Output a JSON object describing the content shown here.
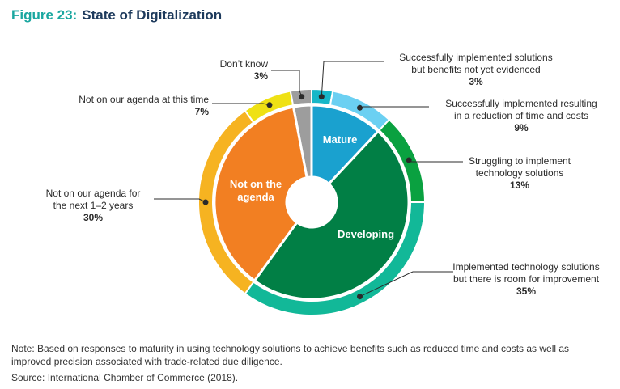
{
  "figure": {
    "number": "Figure 23:",
    "title": "State of Digitalization",
    "note": "Note: Based on responses to maturity in using technology solutions to achieve benefits such as reduced time and costs as well as improved precision associated with trade-related due diligence.",
    "source": "Source: International Chamber of Commerce (2018)."
  },
  "chart_data": {
    "type": "pie",
    "title": "State of Digitalization",
    "inner": [
      {
        "label": "Mature",
        "value": 12,
        "color": "#1aa1cf"
      },
      {
        "label": "Developing",
        "value": 48,
        "color": "#017f45"
      },
      {
        "label": "Not on the agenda",
        "label_lines": [
          "Not on the",
          "agenda"
        ],
        "value": 37,
        "color": "#f27f22"
      },
      {
        "label": "Don’t know",
        "value": 3,
        "color": "#9d9d9d"
      }
    ],
    "outer": [
      {
        "label": "Successfully implemented solutions but benefits not yet evidenced",
        "label_lines": [
          "Successfully implemented solutions",
          "but benefits not yet evidenced"
        ],
        "value": 3,
        "value_label": "3%",
        "color": "#17b7c8"
      },
      {
        "label": "Successfully implemented resulting in a reduction of time and costs",
        "label_lines": [
          "Successfully implemented resulting",
          "in a reduction of time and costs"
        ],
        "value": 9,
        "value_label": "9%",
        "color": "#6bd0f2"
      },
      {
        "label": "Struggling to implement technology solutions",
        "label_lines": [
          "Struggling to implement",
          "technology solutions"
        ],
        "value": 13,
        "value_label": "13%",
        "color": "#0aa140"
      },
      {
        "label": "Implemented technology solutions but there is room for improvement",
        "label_lines": [
          "Implemented technology solutions",
          "but there is room for improvement"
        ],
        "value": 35,
        "value_label": "35%",
        "color": "#12b898"
      },
      {
        "label": "Not on our agenda for the next 1–2 years",
        "label_lines": [
          "Not on our agenda for",
          "the next 1–2 years"
        ],
        "value": 30,
        "value_label": "30%",
        "color": "#f6b321"
      },
      {
        "label": "Not on our agenda at this time",
        "label_lines": [
          "Not on our agenda at this time"
        ],
        "value": 7,
        "value_label": "7%",
        "color": "#efe114"
      },
      {
        "label": "Don’t know",
        "label_lines": [
          "Don’t know"
        ],
        "value": 3,
        "value_label": "3%",
        "color": "#9d9d9d"
      }
    ]
  }
}
